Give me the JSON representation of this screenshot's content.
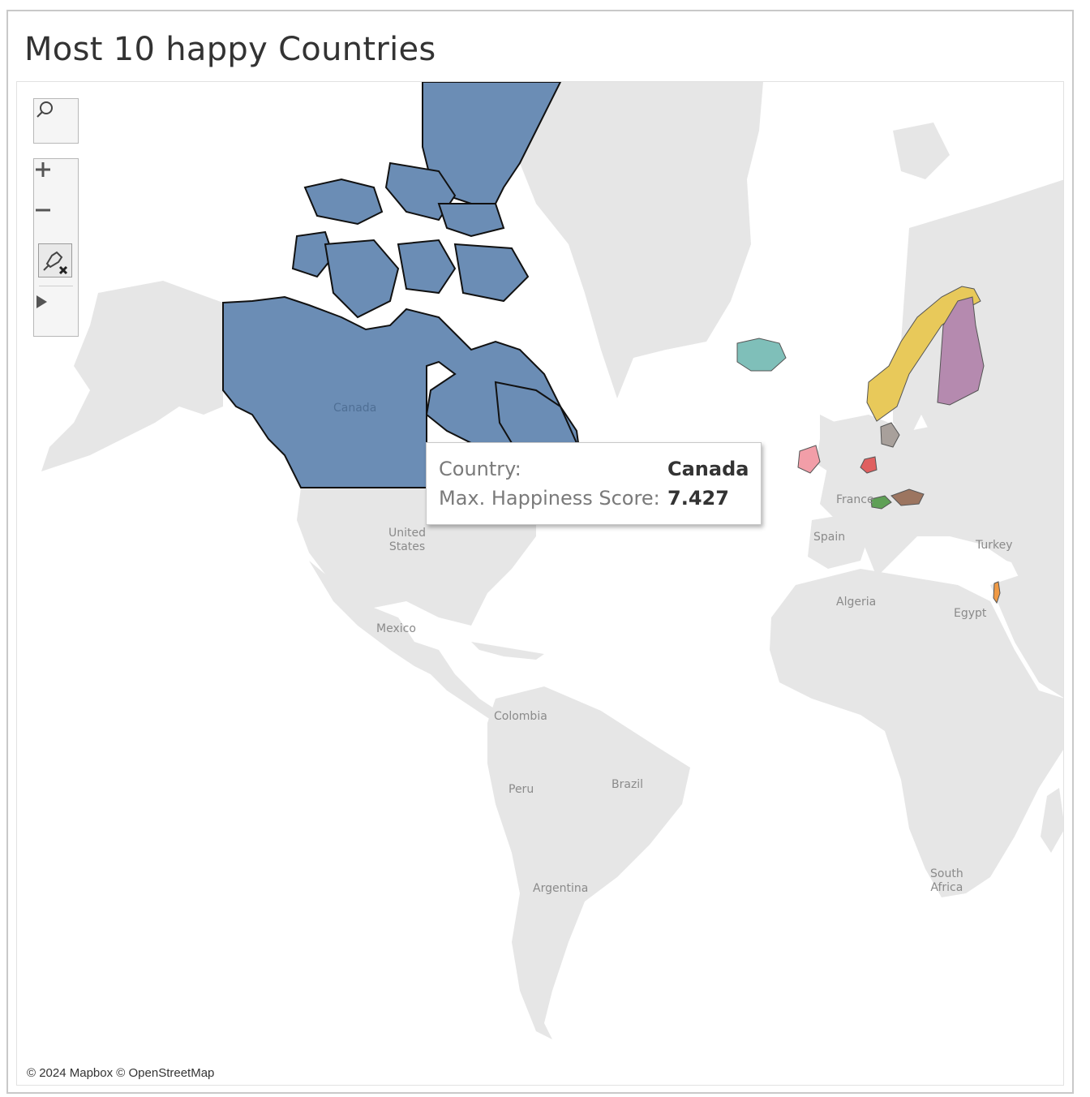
{
  "title": "Most 10 happy Countries",
  "controls": {
    "search": "search-icon",
    "zoom_in": "plus-icon",
    "zoom_out": "minus-icon",
    "clear_pins": "pin-clear-icon",
    "expand": "play-icon"
  },
  "tooltip": {
    "country_label": "Country:",
    "country_value": "Canada",
    "score_label": "Max. Happiness Score:",
    "score_value": "7.427"
  },
  "map_labels": {
    "canada": "Canada",
    "united_states": "United\nStates",
    "mexico": "Mexico",
    "colombia": "Colombia",
    "peru": "Peru",
    "brazil": "Brazil",
    "argentina": "Argentina",
    "france": "France",
    "spain": "Spain",
    "turkey": "Turkey",
    "algeria": "Algeria",
    "egypt": "Egypt",
    "south_africa": "South\nAfrica"
  },
  "highlighted_countries": [
    {
      "name": "Canada",
      "color": "#6b8db5"
    },
    {
      "name": "Iceland",
      "color": "#7fbfb9"
    },
    {
      "name": "Norway",
      "color": "#e8c95a"
    },
    {
      "name": "Finland",
      "color": "#b58aaf"
    },
    {
      "name": "Ireland",
      "color": "#f29ea8"
    },
    {
      "name": "Netherlands",
      "color": "#e06060"
    },
    {
      "name": "Denmark",
      "color": "#a8a09b"
    },
    {
      "name": "Switzerland",
      "color": "#5fa056"
    },
    {
      "name": "Austria",
      "color": "#9c7560"
    },
    {
      "name": "Israel",
      "color": "#f09a45"
    }
  ],
  "land_color": "#e6e6e6",
  "attribution": "© 2024 Mapbox © OpenStreetMap"
}
